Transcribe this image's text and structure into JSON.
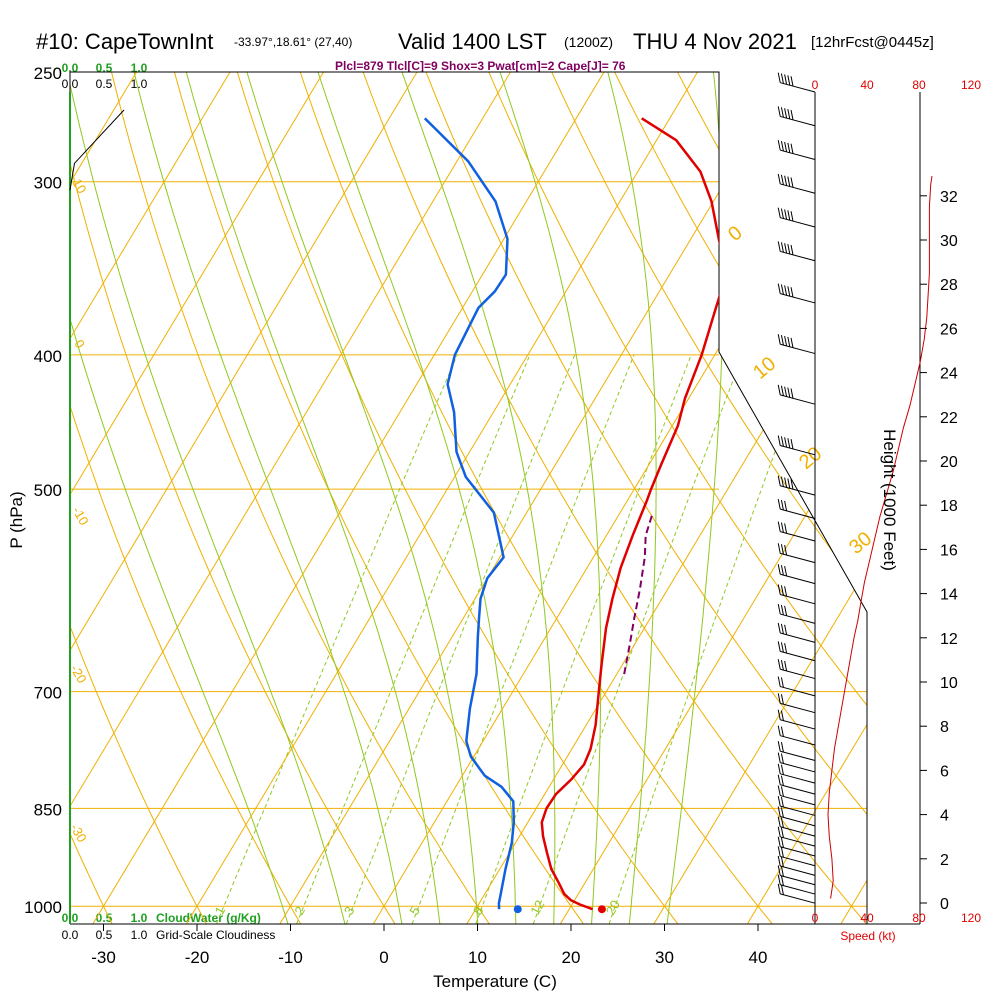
{
  "title": {
    "station": "#10: CapeTownInt",
    "coords": "-33.97°,18.61° (27,40)",
    "valid": "Valid 1400 LST",
    "zulu": "(1200Z)",
    "date": "THU 4 Nov 2021",
    "forecast": "[12hrFcst@0445z]",
    "indices": "Plcl=879 Tlcl[C]=9 Shox=3 Pwat[cm]=2 Cape[J]= 76"
  },
  "legend": {
    "cloudwater_ticks": [
      "0.0",
      "0.5",
      "1.0"
    ],
    "cloudiness_ticks": [
      "0.0",
      "0.5",
      "1.0"
    ],
    "cloudwater_label": "CloudWater (g/Kg)",
    "cloudiness_label": "Grid-Scale Cloudiness",
    "speed_ticks": [
      "0",
      "40",
      "80",
      "120"
    ],
    "speed_label": "Speed (kt)"
  },
  "colors": {
    "isobar": "#f0b000",
    "dry_adiabat": "#f0b000",
    "moist_adiabat": "#90c820",
    "mixing_ratio": "#90c820",
    "temperature": "#e00000",
    "dewpoint": "#1060e0",
    "parcel": "#800060",
    "cloud": "#20a020",
    "wind": "#000000",
    "speed": "#cc0000"
  },
  "chart_data": {
    "type": "line",
    "title": "#10: CapeTownInt Valid 1400 LST (1200Z) THU 4 Nov 2021",
    "xlabel": "Temperature (C)",
    "ylabel": "P (hPa)",
    "y2label": "Height (1000 Feet)",
    "x_ticks": [
      "-30",
      "-20",
      "-10",
      "0",
      "10",
      "20",
      "30",
      "40"
    ],
    "y_ticks": [
      "250",
      "300",
      "400",
      "500",
      "700",
      "850",
      "1000"
    ],
    "height_ticks": [
      "0",
      "2",
      "4",
      "6",
      "8",
      "10",
      "12",
      "14",
      "16",
      "18",
      "20",
      "22",
      "24",
      "26",
      "28",
      "30",
      "32"
    ],
    "skew_labels": [
      "0",
      "10",
      "20",
      "30"
    ],
    "left_labels": [
      "-30",
      "-20",
      "-10",
      "0",
      "10"
    ],
    "mixing_labels": [
      "1",
      "2",
      "3",
      "5",
      "8",
      "12",
      "20"
    ],
    "series": [
      {
        "name": "Temperature",
        "points": [
          [
            22.5,
            1005
          ],
          [
            20.8,
            997
          ],
          [
            19.6,
            990
          ],
          [
            18.5,
            980
          ],
          [
            17.2,
            962
          ],
          [
            15.5,
            940
          ],
          [
            14.0,
            915
          ],
          [
            12.5,
            890
          ],
          [
            11.5,
            870
          ],
          [
            11.1,
            850
          ],
          [
            11.2,
            830
          ],
          [
            11.9,
            810
          ],
          [
            12.3,
            790
          ],
          [
            12.0,
            770
          ],
          [
            11.0,
            740
          ],
          [
            9.2,
            700
          ],
          [
            7.8,
            670
          ],
          [
            5.9,
            630
          ],
          [
            4.7,
            600
          ],
          [
            3.6,
            570
          ],
          [
            2.8,
            540
          ],
          [
            2.1,
            510
          ],
          [
            1.8,
            500
          ],
          [
            1.3,
            480
          ],
          [
            0.6,
            450
          ],
          [
            -0.4,
            430
          ],
          [
            -1.4,
            400
          ],
          [
            -2.9,
            370
          ],
          [
            -3.4,
            360
          ],
          [
            -4.0,
            350
          ],
          [
            -5.4,
            340
          ],
          [
            -7.0,
            330
          ],
          [
            -10.2,
            310
          ],
          [
            -13.3,
            295
          ],
          [
            -17.9,
            280
          ],
          [
            -23.0,
            270
          ]
        ]
      },
      {
        "name": "Dewpoint",
        "points": [
          [
            12.5,
            1005
          ],
          [
            12.1,
            995
          ],
          [
            11.7,
            980
          ],
          [
            10.6,
            940
          ],
          [
            9.6,
            900
          ],
          [
            8.5,
            870
          ],
          [
            7.1,
            840
          ],
          [
            4.9,
            820
          ],
          [
            2.4,
            805
          ],
          [
            -0.3,
            780
          ],
          [
            -1.8,
            760
          ],
          [
            -3.5,
            720
          ],
          [
            -5.0,
            680
          ],
          [
            -7.2,
            640
          ],
          [
            -8.3,
            620
          ],
          [
            -9.4,
            600
          ],
          [
            -10.0,
            580
          ],
          [
            -9.6,
            560
          ],
          [
            -13.5,
            520
          ],
          [
            -18.8,
            490
          ],
          [
            -21.4,
            470
          ],
          [
            -24.2,
            440
          ],
          [
            -26.7,
            420
          ],
          [
            -27.8,
            400
          ],
          [
            -28.3,
            370
          ],
          [
            -27.6,
            360
          ],
          [
            -27.5,
            350
          ],
          [
            -29.6,
            330
          ],
          [
            -33.3,
            310
          ],
          [
            -38.8,
            290
          ],
          [
            -46.2,
            270
          ]
        ]
      },
      {
        "name": "Parcel",
        "points": [
          [
            10.8,
            680
          ],
          [
            9.6,
            650
          ],
          [
            8.3,
            620
          ],
          [
            7.0,
            590
          ],
          [
            5.5,
            560
          ],
          [
            4.2,
            540
          ],
          [
            3.5,
            520
          ]
        ]
      }
    ],
    "wind_speed_kt": {
      "heights_kft": [
        0.2,
        1.0,
        2.0,
        3.0,
        4.0,
        5.0,
        6.0,
        7.0,
        8.0,
        9.0,
        10.0,
        11.0,
        12.0,
        12.8,
        13.5,
        14.5,
        15.5,
        16.5,
        17.5,
        18.5,
        19.5,
        20.5,
        21.5,
        22.5,
        23.5,
        24.5,
        25.5,
        26.5,
        27.5,
        28.5,
        29.5,
        30.5,
        31.5,
        32.5,
        32.9
      ],
      "speeds": [
        12,
        14,
        13,
        11,
        10,
        11,
        13,
        15,
        18,
        21,
        24,
        27,
        30,
        33,
        35,
        38,
        42,
        46,
        50,
        55,
        60,
        64,
        68,
        73,
        77,
        81,
        84,
        86,
        87,
        88,
        88,
        88,
        88,
        89,
        90
      ]
    },
    "wind_barb_pressures": [
      265,
      285,
      305,
      325,
      345,
      365,
      390,
      420,
      450,
      480,
      505,
      525,
      545,
      565,
      585,
      605,
      625,
      645,
      665,
      685,
      705,
      725,
      745,
      765,
      785,
      800,
      815,
      830,
      845,
      860,
      875,
      890,
      905,
      920,
      935,
      950,
      965,
      980,
      995
    ],
    "cloudwater_profile": [
      [
        0.0,
        1000
      ],
      [
        0.0,
        250
      ]
    ],
    "cloudiness_profile": [
      [
        0.0,
        300
      ],
      [
        0.05,
        285
      ],
      [
        0.6,
        255
      ]
    ],
    "xlim": [
      -35,
      45
    ],
    "ylim": [
      1030,
      250
    ]
  }
}
